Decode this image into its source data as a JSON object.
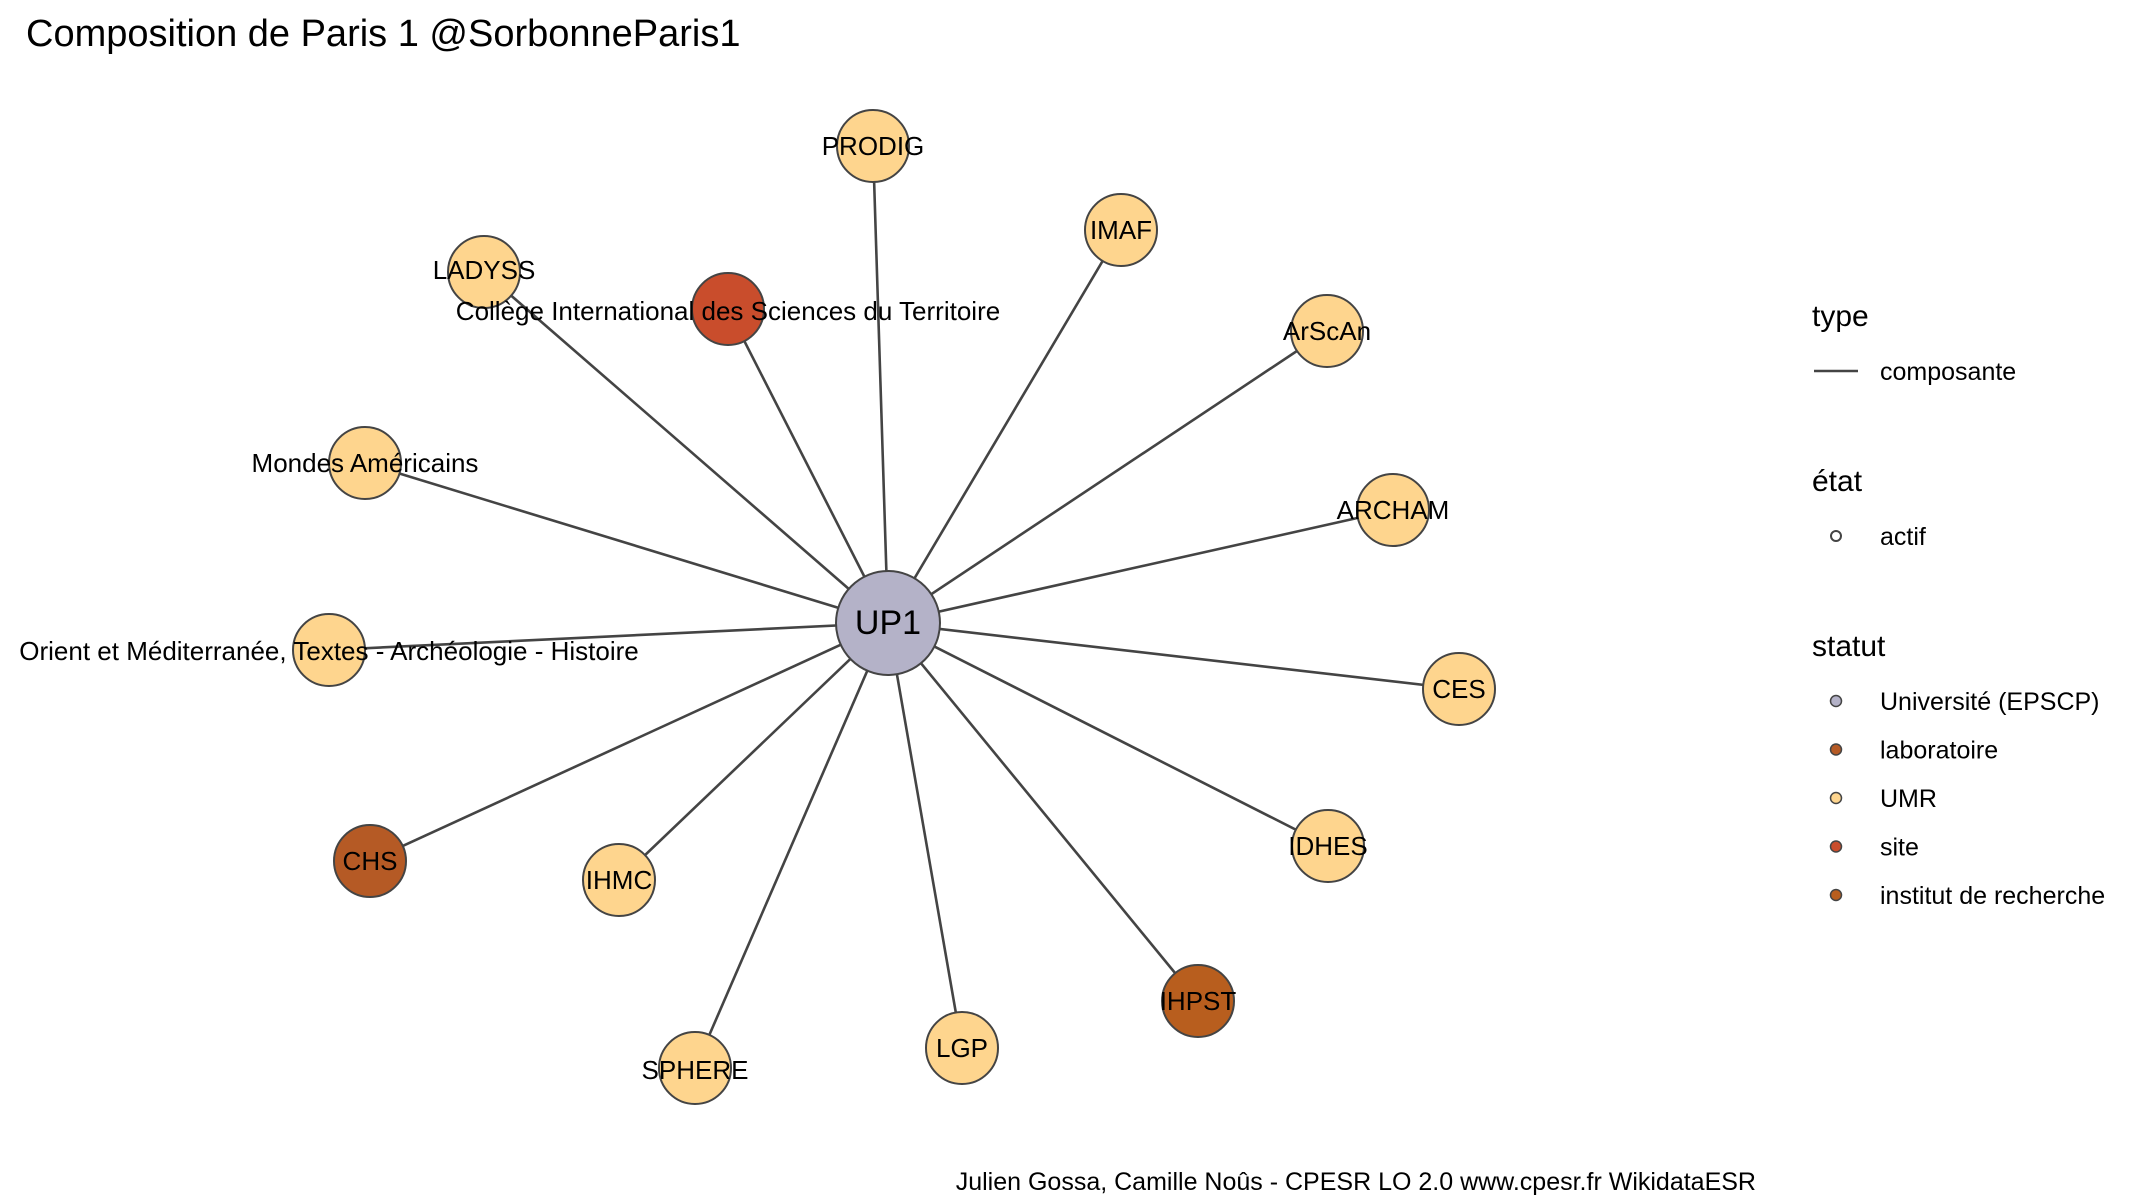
{
  "title": "Composition de Paris 1 @SorbonneParis1",
  "caption": "Julien Gossa, Camille Noûs - CPESR LO 2.0 www.cpesr.fr WikidataESR",
  "colors": {
    "edge": "#444444",
    "node_border": "#444444",
    "universite": "#B4B2C8",
    "laboratoire": "#B55A25",
    "umr": "#FED58E",
    "site": "#C94D2C",
    "institut": "#B85E1E"
  },
  "graph": {
    "hub": {
      "label": "UP1",
      "statut": "Université (EPSCP)"
    },
    "nodes": [
      {
        "label": "PRODIG",
        "statut": "UMR"
      },
      {
        "label": "IMAF",
        "statut": "UMR"
      },
      {
        "label": "LADYSS",
        "statut": "UMR"
      },
      {
        "label": "Collège International des Sciences du Territoire",
        "statut": "site"
      },
      {
        "label": "ArScAn",
        "statut": "UMR"
      },
      {
        "label": "Mondes Américains",
        "statut": "UMR"
      },
      {
        "label": "ARCHAM",
        "statut": "UMR"
      },
      {
        "label": "Orient et Méditerranée, Textes - Archéologie - Histoire",
        "statut": "UMR"
      },
      {
        "label": "CES",
        "statut": "UMR"
      },
      {
        "label": "CHS",
        "statut": "laboratoire"
      },
      {
        "label": "IHMC",
        "statut": "UMR"
      },
      {
        "label": "IDHES",
        "statut": "UMR"
      },
      {
        "label": "IHPST",
        "statut": "institut de recherche"
      },
      {
        "label": "SPHERE",
        "statut": "UMR"
      },
      {
        "label": "LGP",
        "statut": "UMR"
      }
    ]
  },
  "legend": {
    "type": {
      "title": "type",
      "items": [
        {
          "label": "composante"
        }
      ]
    },
    "etat": {
      "title": "état",
      "items": [
        {
          "label": "actif"
        }
      ]
    },
    "statut": {
      "title": "statut",
      "items": [
        {
          "label": "Université (EPSCP)",
          "color": "#B4B2C8"
        },
        {
          "label": "laboratoire",
          "color": "#B55A25"
        },
        {
          "label": "UMR",
          "color": "#FED58E"
        },
        {
          "label": "site",
          "color": "#C94D2C"
        },
        {
          "label": "institut de recherche",
          "color": "#B85E1E"
        }
      ]
    }
  }
}
